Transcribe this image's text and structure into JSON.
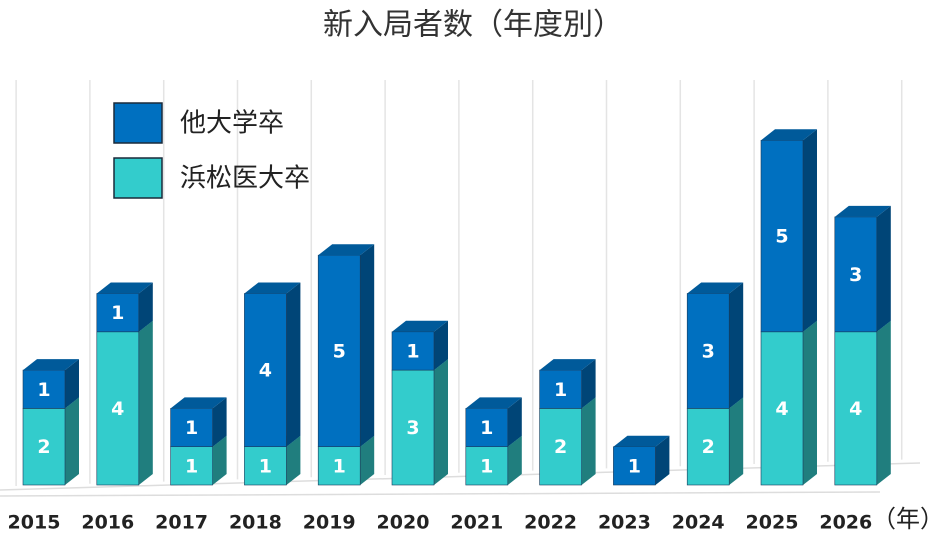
{
  "chart_data": {
    "type": "bar3d_stacked",
    "title": "新入局者数（年度別）",
    "x_label": "（年）",
    "categories": [
      "2015",
      "2016",
      "2017",
      "2018",
      "2019",
      "2020",
      "2021",
      "2022",
      "2023",
      "2024",
      "2025",
      "2026"
    ],
    "series": [
      {
        "name": "他大学卒",
        "color": "#0070c0",
        "values": [
          1,
          1,
          1,
          4,
          5,
          1,
          1,
          1,
          1,
          3,
          5,
          3
        ]
      },
      {
        "name": "浜松医大卒",
        "color": "#33cccc",
        "values": [
          2,
          4,
          1,
          1,
          1,
          3,
          1,
          2,
          0,
          2,
          4,
          4
        ]
      }
    ],
    "ylim": [
      0,
      10
    ],
    "legend": "upper-left"
  }
}
